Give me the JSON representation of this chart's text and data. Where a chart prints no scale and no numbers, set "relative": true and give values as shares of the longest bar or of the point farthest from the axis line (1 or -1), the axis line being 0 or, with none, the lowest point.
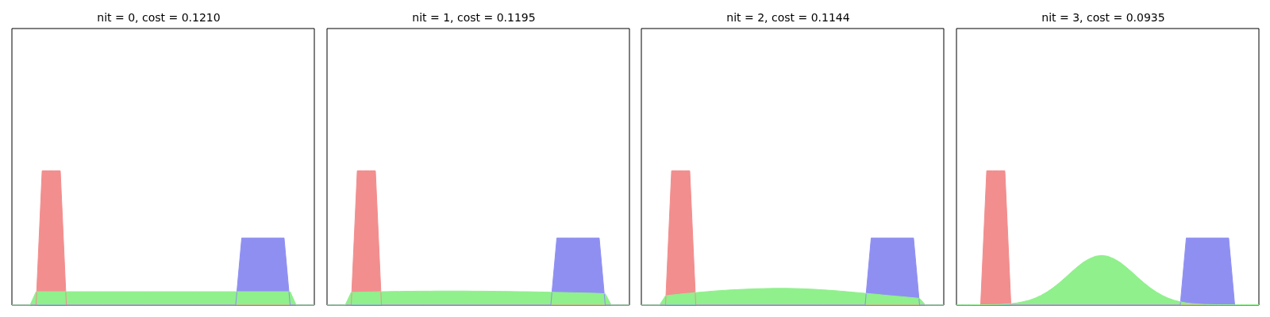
{
  "chart_data": [
    {
      "type": "area",
      "title": "nit = 0, cost = 0.1210",
      "relative": true,
      "categories": [
        null,
        null,
        null,
        null,
        null,
        null,
        null,
        null,
        null,
        null,
        null,
        null,
        null,
        null,
        null,
        null,
        null,
        null,
        null,
        null,
        null,
        null,
        null,
        null,
        null,
        null,
        null,
        null,
        null,
        null,
        null,
        null,
        null,
        null,
        null,
        null,
        null,
        null,
        null,
        null,
        null,
        null,
        null,
        null,
        null,
        null,
        null,
        null,
        null,
        null,
        null
      ],
      "series": [
        {
          "color": "#f28e8e",
          "values": [
            0,
            0,
            0,
            0,
            0,
            1,
            1,
            1,
            1,
            0,
            0,
            0,
            0,
            0,
            0,
            0,
            0,
            0,
            0,
            0,
            0,
            0,
            0,
            0,
            0,
            0,
            0,
            0,
            0,
            0,
            0,
            0,
            0,
            0,
            0,
            0,
            0,
            0,
            0,
            0,
            0,
            0,
            0,
            0,
            0,
            0,
            0,
            0,
            0,
            0,
            0
          ]
        },
        {
          "color": "#8f8ff2",
          "values": [
            0,
            0,
            0,
            0,
            0,
            0,
            0,
            0,
            0,
            0,
            0,
            0,
            0,
            0,
            0,
            0,
            0,
            0,
            0,
            0,
            0,
            0,
            0,
            0,
            0,
            0,
            0,
            0,
            0,
            0,
            0,
            0,
            0,
            0,
            0,
            0,
            0,
            0,
            0.5,
            0.5,
            0.5,
            0.5,
            0.5,
            0.5,
            0.5,
            0.5,
            0,
            0,
            0,
            0,
            0
          ]
        },
        {
          "color": "#90f08c",
          "values": [
            0,
            0,
            0,
            0,
            0.1,
            0.1,
            0.1,
            0.1,
            0.1,
            0.1,
            0.1,
            0.1,
            0.1,
            0.1,
            0.1,
            0.1,
            0.1,
            0.1,
            0.1,
            0.1,
            0.1,
            0.1,
            0.1,
            0.1,
            0.1,
            0.1,
            0.1,
            0.1,
            0.1,
            0.1,
            0.1,
            0.1,
            0.1,
            0.1,
            0.1,
            0.1,
            0.1,
            0.1,
            0.1,
            0.1,
            0.1,
            0.1,
            0.1,
            0.1,
            0.1,
            0.1,
            0.1,
            0,
            0,
            0,
            0
          ]
        }
      ]
    },
    {
      "type": "area",
      "title": "nit = 1, cost = 0.1195",
      "relative": true,
      "categories": [
        null,
        null,
        null,
        null,
        null,
        null,
        null,
        null,
        null,
        null,
        null,
        null,
        null,
        null,
        null,
        null,
        null,
        null,
        null,
        null,
        null,
        null,
        null,
        null,
        null,
        null,
        null,
        null,
        null,
        null,
        null,
        null,
        null,
        null,
        null,
        null,
        null,
        null,
        null,
        null,
        null,
        null,
        null,
        null,
        null,
        null,
        null,
        null,
        null,
        null,
        null
      ],
      "series": [
        {
          "color": "#f28e8e",
          "values": [
            0,
            0,
            0,
            0,
            0,
            1,
            1,
            1,
            1,
            0,
            0,
            0,
            0,
            0,
            0,
            0,
            0,
            0,
            0,
            0,
            0,
            0,
            0,
            0,
            0,
            0,
            0,
            0,
            0,
            0,
            0,
            0,
            0,
            0,
            0,
            0,
            0,
            0,
            0,
            0,
            0,
            0,
            0,
            0,
            0,
            0,
            0,
            0,
            0,
            0,
            0
          ]
        },
        {
          "color": "#8f8ff2",
          "values": [
            0,
            0,
            0,
            0,
            0,
            0,
            0,
            0,
            0,
            0,
            0,
            0,
            0,
            0,
            0,
            0,
            0,
            0,
            0,
            0,
            0,
            0,
            0,
            0,
            0,
            0,
            0,
            0,
            0,
            0,
            0,
            0,
            0,
            0,
            0,
            0,
            0,
            0,
            0.5,
            0.5,
            0.5,
            0.5,
            0.5,
            0.5,
            0.5,
            0.5,
            0,
            0,
            0,
            0,
            0
          ]
        },
        {
          "color": "#90f08c",
          "values": [
            0,
            0,
            0,
            0,
            0.095,
            0.096,
            0.097,
            0.098,
            0.099,
            0.1,
            0.101,
            0.102,
            0.102,
            0.103,
            0.103,
            0.104,
            0.104,
            0.104,
            0.105,
            0.105,
            0.105,
            0.105,
            0.105,
            0.105,
            0.104,
            0.104,
            0.104,
            0.103,
            0.103,
            0.102,
            0.102,
            0.101,
            0.1,
            0.1,
            0.099,
            0.098,
            0.097,
            0.096,
            0.095,
            0.094,
            0.093,
            0.092,
            0.091,
            0.09,
            0.089,
            0.087,
            0.085,
            0,
            0,
            0,
            0
          ]
        }
      ]
    },
    {
      "type": "area",
      "title": "nit = 2, cost = 0.1144",
      "relative": true,
      "categories": [
        null,
        null,
        null,
        null,
        null,
        null,
        null,
        null,
        null,
        null,
        null,
        null,
        null,
        null,
        null,
        null,
        null,
        null,
        null,
        null,
        null,
        null,
        null,
        null,
        null,
        null,
        null,
        null,
        null,
        null,
        null,
        null,
        null,
        null,
        null,
        null,
        null,
        null,
        null,
        null,
        null,
        null,
        null,
        null,
        null,
        null,
        null,
        null,
        null,
        null,
        null
      ],
      "series": [
        {
          "color": "#f28e8e",
          "values": [
            0,
            0,
            0,
            0,
            0,
            1,
            1,
            1,
            1,
            0,
            0,
            0,
            0,
            0,
            0,
            0,
            0,
            0,
            0,
            0,
            0,
            0,
            0,
            0,
            0,
            0,
            0,
            0,
            0,
            0,
            0,
            0,
            0,
            0,
            0,
            0,
            0,
            0,
            0,
            0,
            0,
            0,
            0,
            0,
            0,
            0,
            0,
            0,
            0,
            0,
            0
          ]
        },
        {
          "color": "#8f8ff2",
          "values": [
            0,
            0,
            0,
            0,
            0,
            0,
            0,
            0,
            0,
            0,
            0,
            0,
            0,
            0,
            0,
            0,
            0,
            0,
            0,
            0,
            0,
            0,
            0,
            0,
            0,
            0,
            0,
            0,
            0,
            0,
            0,
            0,
            0,
            0,
            0,
            0,
            0,
            0,
            0.5,
            0.5,
            0.5,
            0.5,
            0.5,
            0.5,
            0.5,
            0.5,
            0,
            0,
            0,
            0,
            0
          ]
        },
        {
          "color": "#90f08c",
          "values": [
            0,
            0,
            0,
            0,
            0.07,
            0.075,
            0.08,
            0.085,
            0.089,
            0.093,
            0.097,
            0.101,
            0.105,
            0.108,
            0.111,
            0.114,
            0.116,
            0.118,
            0.12,
            0.122,
            0.123,
            0.124,
            0.125,
            0.125,
            0.125,
            0.124,
            0.123,
            0.121,
            0.119,
            0.117,
            0.114,
            0.111,
            0.108,
            0.104,
            0.1,
            0.096,
            0.092,
            0.088,
            0.084,
            0.08,
            0.075,
            0.071,
            0.067,
            0.063,
            0.059,
            0.055,
            0.05,
            0,
            0,
            0,
            0
          ]
        }
      ]
    },
    {
      "type": "area",
      "title": "nit = 3, cost = 0.0935",
      "relative": true,
      "categories": [
        null,
        null,
        null,
        null,
        null,
        null,
        null,
        null,
        null,
        null,
        null,
        null,
        null,
        null,
        null,
        null,
        null,
        null,
        null,
        null,
        null,
        null,
        null,
        null,
        null,
        null,
        null,
        null,
        null,
        null,
        null,
        null,
        null,
        null,
        null,
        null,
        null,
        null,
        null,
        null,
        null,
        null,
        null,
        null,
        null,
        null,
        null,
        null,
        null,
        null,
        null
      ],
      "series": [
        {
          "color": "#f28e8e",
          "values": [
            0,
            0,
            0,
            0,
            0,
            1,
            1,
            1,
            1,
            0,
            0,
            0,
            0,
            0,
            0,
            0,
            0,
            0,
            0,
            0,
            0,
            0,
            0,
            0,
            0,
            0,
            0,
            0,
            0,
            0,
            0,
            0,
            0,
            0,
            0,
            0,
            0,
            0,
            0,
            0,
            0,
            0,
            0,
            0,
            0,
            0,
            0,
            0,
            0,
            0,
            0
          ]
        },
        {
          "color": "#8f8ff2",
          "values": [
            0,
            0,
            0,
            0,
            0,
            0,
            0,
            0,
            0,
            0,
            0,
            0,
            0,
            0,
            0,
            0,
            0,
            0,
            0,
            0,
            0,
            0,
            0,
            0,
            0,
            0,
            0,
            0,
            0,
            0,
            0,
            0,
            0,
            0,
            0,
            0,
            0,
            0,
            0.5,
            0.5,
            0.5,
            0.5,
            0.5,
            0.5,
            0.5,
            0.5,
            0,
            0,
            0,
            0,
            0
          ]
        },
        {
          "color": "#90f08c",
          "values": [
            0.002,
            0.002,
            0.002,
            0.003,
            0.003,
            0.003,
            0.004,
            0.005,
            0.008,
            0.011,
            0.016,
            0.025,
            0.036,
            0.052,
            0.073,
            0.099,
            0.13,
            0.166,
            0.205,
            0.246,
            0.285,
            0.32,
            0.346,
            0.364,
            0.37,
            0.364,
            0.346,
            0.32,
            0.285,
            0.246,
            0.205,
            0.166,
            0.13,
            0.099,
            0.073,
            0.052,
            0.036,
            0.025,
            0.016,
            0.011,
            0.008,
            0.005,
            0.004,
            0.003,
            0.003,
            0.003,
            0.003,
            0.003,
            0.003,
            0.003,
            0.003
          ]
        }
      ]
    }
  ]
}
